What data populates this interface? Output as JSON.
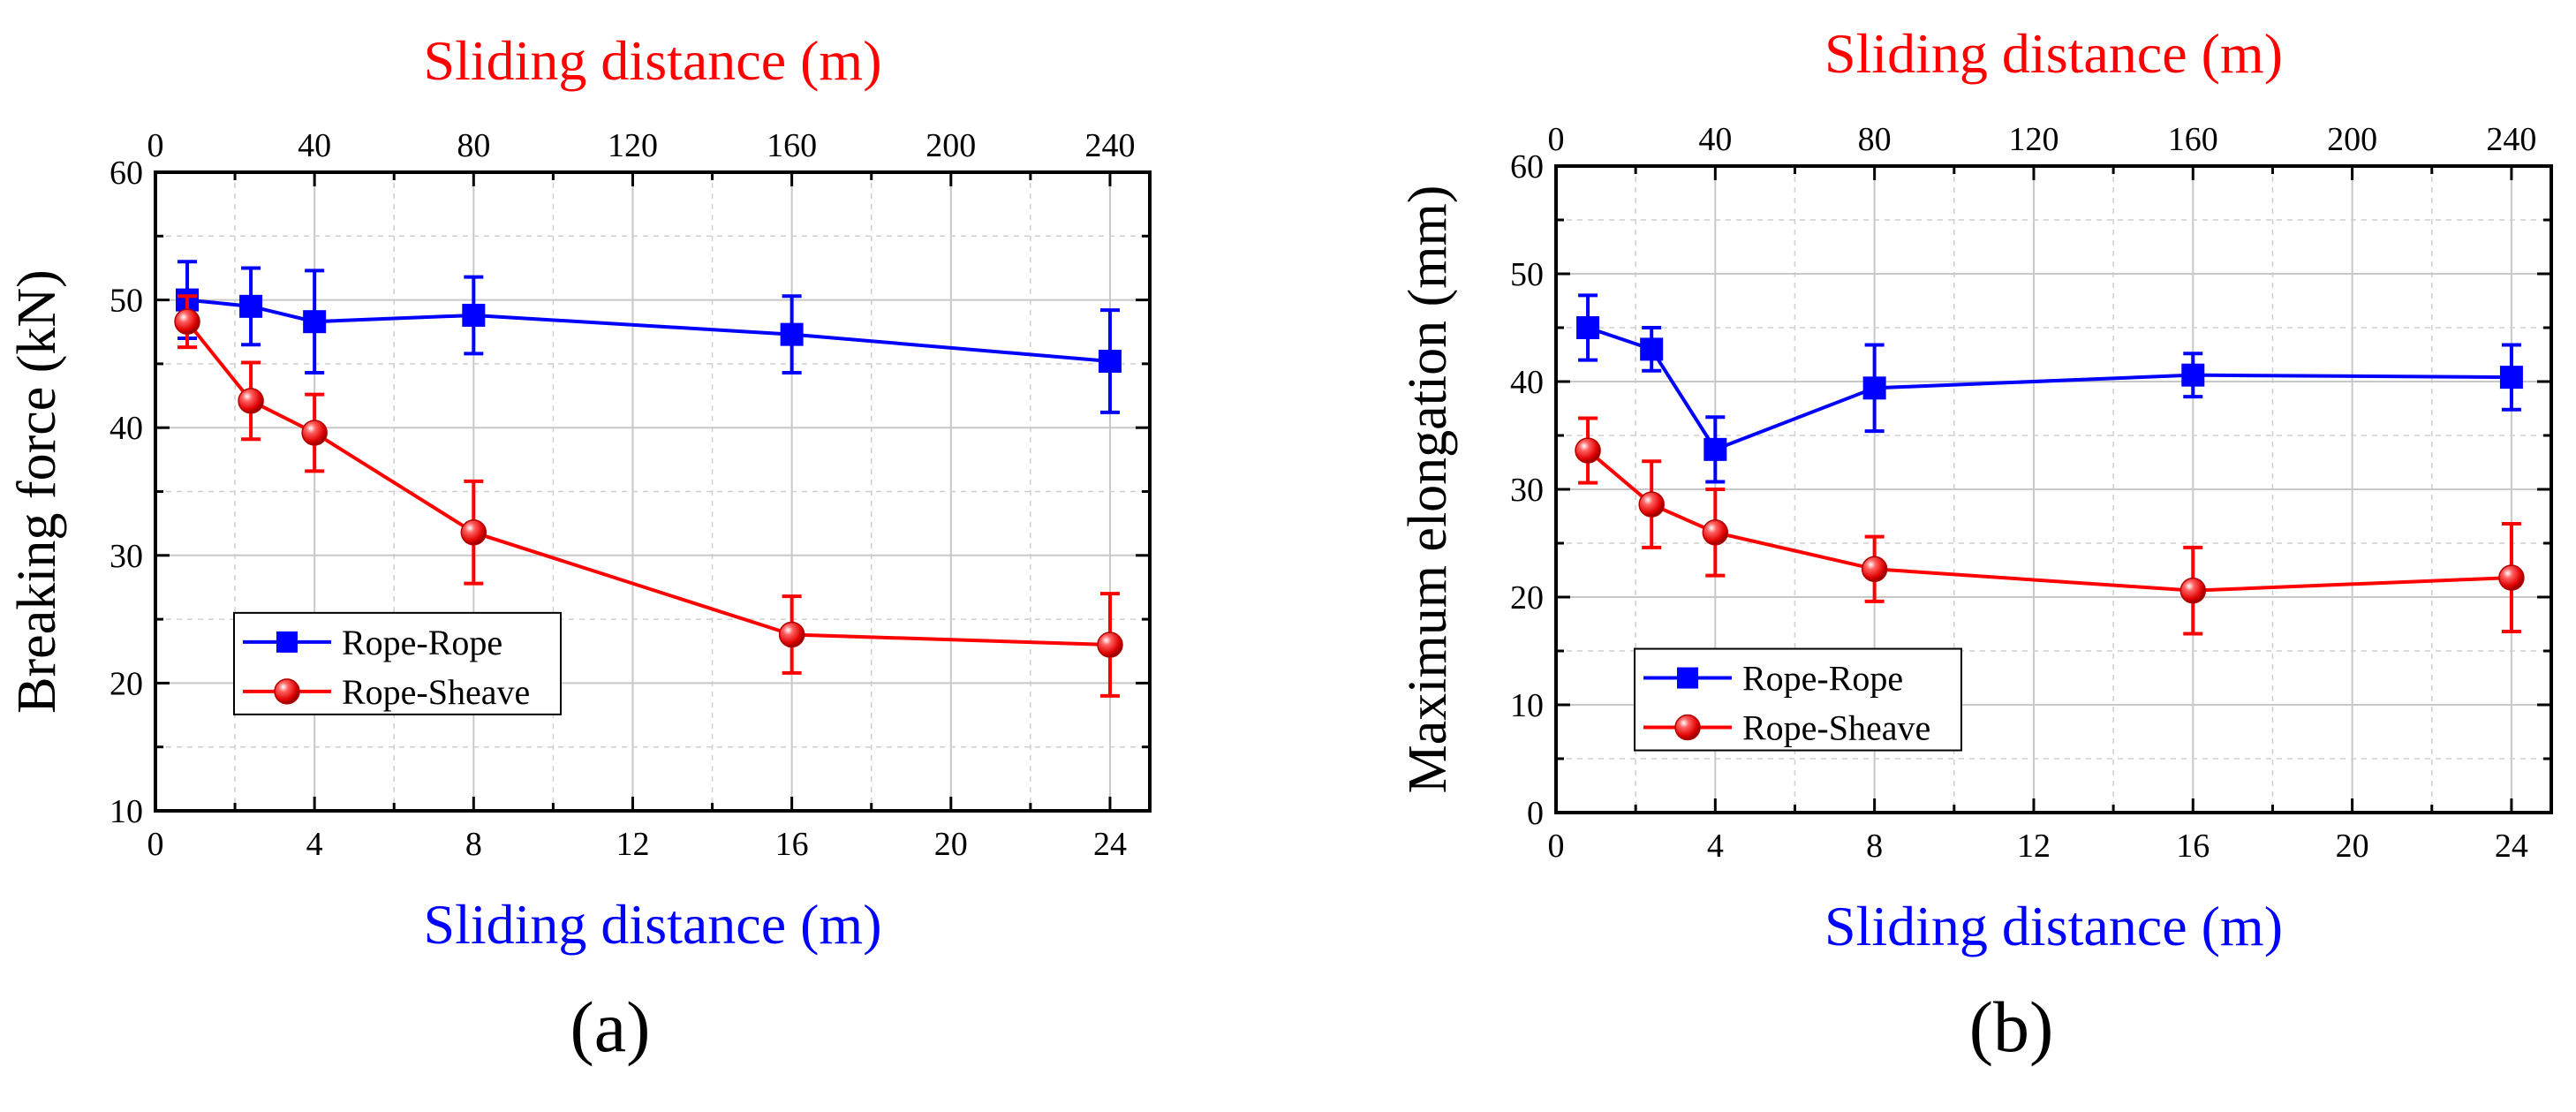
{
  "colors": {
    "rope_rope": "#0000ff",
    "rope_sheave": "#ff0000",
    "top_axis_title": "#ff0000",
    "bottom_axis_title": "#0000ff"
  },
  "chart_data": [
    {
      "type": "line",
      "panel_label": "(a)",
      "xlabel": "Sliding distance (m)",
      "x_top_label": "Sliding distance (m)",
      "ylabel": "Breaking force (kN)",
      "xlim": [
        0,
        25
      ],
      "ylim": [
        10,
        60
      ],
      "x_ticks": [
        0,
        4,
        8,
        12,
        16,
        20,
        24
      ],
      "y_ticks": [
        10,
        20,
        30,
        40,
        50,
        60
      ],
      "top_axis": {
        "scale": 10,
        "ticks": [
          0,
          40,
          80,
          120,
          160,
          200,
          240
        ]
      },
      "grid": true,
      "legend": "lower-left",
      "series": [
        {
          "name": "Rope-Rope",
          "marker": "square",
          "color": "#0000ff",
          "x": [
            0.8,
            2.4,
            4,
            8,
            16,
            24
          ],
          "y": [
            50.0,
            49.5,
            48.3,
            48.8,
            47.3,
            45.2
          ],
          "err": [
            3.0,
            3.0,
            4.0,
            3.0,
            3.0,
            4.0
          ]
        },
        {
          "name": "Rope-Sheave",
          "marker": "sphere",
          "color": "#ff0000",
          "x": [
            0.8,
            2.4,
            4,
            8,
            16,
            24
          ],
          "y": [
            48.3,
            42.1,
            39.6,
            31.8,
            23.8,
            23.0
          ],
          "err": [
            2.0,
            3.0,
            3.0,
            4.0,
            3.0,
            4.0
          ]
        }
      ]
    },
    {
      "type": "line",
      "panel_label": "(b)",
      "xlabel": "Sliding distance (m)",
      "x_top_label": "Sliding distance (m)",
      "ylabel": "Maximum elongation (mm)",
      "xlim": [
        0,
        25
      ],
      "ylim": [
        0,
        60
      ],
      "x_ticks": [
        0,
        4,
        8,
        12,
        16,
        20,
        24
      ],
      "y_ticks": [
        0,
        10,
        20,
        30,
        40,
        50,
        60
      ],
      "top_axis": {
        "scale": 10,
        "ticks": [
          0,
          40,
          80,
          120,
          160,
          200,
          240
        ]
      },
      "grid": true,
      "legend": "lower-left",
      "series": [
        {
          "name": "Rope-Rope",
          "marker": "square",
          "color": "#0000ff",
          "x": [
            0.8,
            2.4,
            4,
            8,
            16,
            24
          ],
          "y": [
            45.0,
            43.0,
            33.7,
            39.4,
            40.6,
            40.4
          ],
          "err": [
            3.0,
            2.0,
            3.0,
            4.0,
            2.0,
            3.0
          ]
        },
        {
          "name": "Rope-Sheave",
          "marker": "sphere",
          "color": "#ff0000",
          "x": [
            0.8,
            2.4,
            4,
            8,
            16,
            24
          ],
          "y": [
            33.6,
            28.6,
            26.0,
            22.6,
            20.6,
            21.8
          ],
          "err": [
            3.0,
            4.0,
            4.0,
            3.0,
            4.0,
            5.0
          ]
        }
      ]
    }
  ]
}
